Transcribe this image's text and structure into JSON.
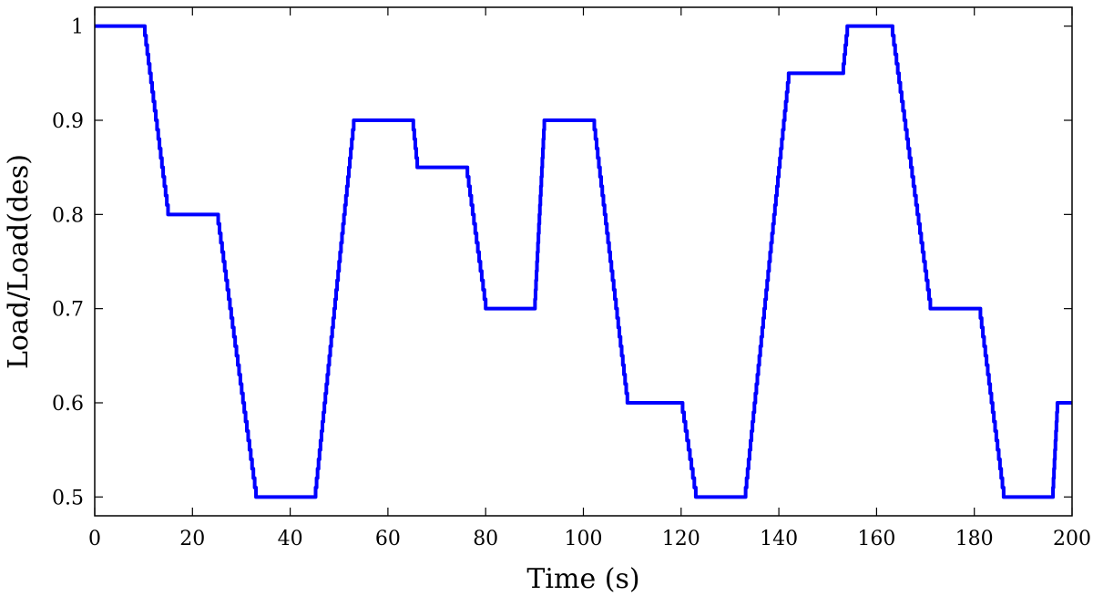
{
  "chart_data": {
    "type": "line",
    "title": "",
    "xlabel": "Time (s)",
    "ylabel": "Load/Load(des)",
    "xlim": [
      0,
      200
    ],
    "ylim": [
      0.48,
      1.02
    ],
    "xticks": [
      0,
      20,
      40,
      60,
      80,
      100,
      120,
      140,
      160,
      180,
      200
    ],
    "yticks": [
      0.5,
      0.6,
      0.7,
      0.8,
      0.9,
      1.0
    ],
    "xtick_labels": [
      "0",
      "20",
      "40",
      "60",
      "80",
      "100",
      "120",
      "140",
      "160",
      "180",
      "200"
    ],
    "ytick_labels": [
      "0.5",
      "0.6",
      "0.7",
      "0.8",
      "0.9",
      "1"
    ],
    "grid": false,
    "legend": null,
    "series": [
      {
        "color": "#0000ff",
        "step": 0.01,
        "x": [
          0,
          10,
          15,
          25,
          33,
          45,
          53,
          65,
          66,
          76,
          80,
          90,
          92,
          102,
          109,
          120,
          123,
          133,
          142,
          153,
          154,
          163,
          171,
          181,
          186,
          196,
          197,
          200
        ],
        "y": [
          1.0,
          1.0,
          0.8,
          0.8,
          0.5,
          0.5,
          0.9,
          0.9,
          0.85,
          0.85,
          0.7,
          0.7,
          0.9,
          0.9,
          0.6,
          0.6,
          0.5,
          0.5,
          0.95,
          0.95,
          1.0,
          1.0,
          0.7,
          0.7,
          0.5,
          0.5,
          0.6,
          0.6
        ]
      }
    ]
  }
}
